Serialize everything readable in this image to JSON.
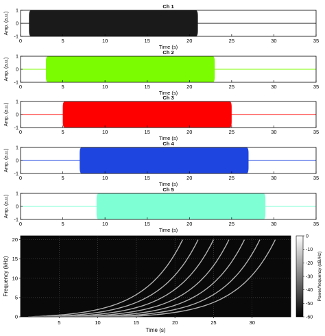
{
  "chart_data": [
    {
      "type": "line",
      "title": "Ch 1",
      "xlabel": "Time (s)",
      "ylabel": "Amp. (a.u.)",
      "xlim": [
        0,
        35
      ],
      "ylim": [
        -1,
        1
      ],
      "xticks": [
        "0",
        "5",
        "10",
        "15",
        "20",
        "25",
        "30",
        "35"
      ],
      "yticks": [
        "-1",
        "0",
        "1"
      ],
      "signal_start": 1,
      "signal_end": 21,
      "amplitude": 1,
      "color": "#1a1a1a"
    },
    {
      "type": "line",
      "title": "Ch 2",
      "xlabel": "Time (s)",
      "ylabel": "Amp. (a.u.)",
      "xlim": [
        0,
        35
      ],
      "ylim": [
        -1,
        1
      ],
      "xticks": [
        "0",
        "5",
        "10",
        "15",
        "20",
        "25",
        "30",
        "35"
      ],
      "yticks": [
        "-1",
        "0",
        "1"
      ],
      "signal_start": 3,
      "signal_end": 23,
      "amplitude": 1,
      "color": "#7cfc00"
    },
    {
      "type": "line",
      "title": "Ch 3",
      "xlabel": "Time (s)",
      "ylabel": "Amp. (a.u.)",
      "xlim": [
        0,
        35
      ],
      "ylim": [
        -1,
        1
      ],
      "xticks": [
        "0",
        "5",
        "10",
        "15",
        "20",
        "25",
        "30",
        "35"
      ],
      "yticks": [
        "-1",
        "0",
        "1"
      ],
      "signal_start": 5,
      "signal_end": 25,
      "amplitude": 1,
      "color": "#ff0000"
    },
    {
      "type": "line",
      "title": "Ch 4",
      "xlabel": "Time (s)",
      "ylabel": "Amp. (a.u.)",
      "xlim": [
        0,
        35
      ],
      "ylim": [
        -1,
        1
      ],
      "xticks": [
        "0",
        "5",
        "10",
        "15",
        "20",
        "25",
        "30",
        "35"
      ],
      "yticks": [
        "-1",
        "0",
        "1"
      ],
      "signal_start": 7,
      "signal_end": 27,
      "amplitude": 1,
      "color": "#1f45e0"
    },
    {
      "type": "line",
      "title": "Ch 5",
      "xlabel": "Time (s)",
      "ylabel": "Amp. (a.u.)",
      "xlim": [
        0,
        35
      ],
      "ylim": [
        -1,
        1
      ],
      "xticks": [
        "0",
        "5",
        "10",
        "15",
        "20",
        "25",
        "30",
        "35"
      ],
      "yticks": [
        "-1",
        "0",
        "1"
      ],
      "signal_start": 9,
      "signal_end": 29,
      "amplitude": 1,
      "color": "#7fffd4"
    },
    {
      "type": "heatmap",
      "title": "",
      "xlabel": "Time (s)",
      "ylabel": "Frequency (kHz)",
      "xlim": [
        0,
        35
      ],
      "ylim": [
        0,
        21
      ],
      "xticks": [
        "5",
        "10",
        "15",
        "20",
        "25",
        "30"
      ],
      "yticks": [
        "0",
        "5",
        "10",
        "15",
        "20"
      ],
      "grid": true,
      "background_level_db": -58,
      "chirps": [
        {
          "start": 1,
          "end": 21,
          "f_end": 20
        },
        {
          "start": 3,
          "end": 23,
          "f_end": 20
        },
        {
          "start": 5,
          "end": 25,
          "f_end": 20
        },
        {
          "start": 7,
          "end": 27,
          "f_end": 20
        },
        {
          "start": 9,
          "end": 29,
          "f_end": 20
        },
        {
          "start": 11,
          "end": 31,
          "f_end": 20
        },
        {
          "start": 13,
          "end": 33,
          "f_end": 20
        }
      ],
      "colorbar": {
        "label": "Power/frequency (dB/Hz)",
        "range": [
          -60,
          0
        ],
        "ticks": [
          "0",
          "-10",
          "-20",
          "-30",
          "-40",
          "-50",
          "-60"
        ],
        "colormap": [
          "#000000",
          "#ffffff"
        ]
      }
    }
  ]
}
